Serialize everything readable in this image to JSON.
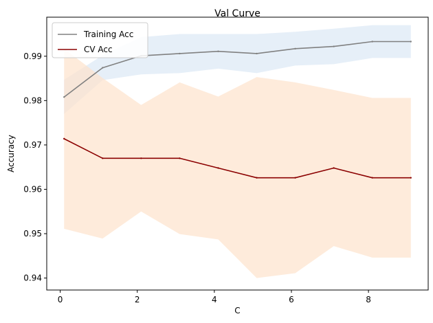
{
  "chart_data": {
    "type": "line",
    "title": "Val Curve",
    "xlabel": "C",
    "ylabel": "Accuracy",
    "x": [
      0.1,
      1.1,
      2.1,
      3.1,
      4.1,
      5.1,
      6.1,
      7.1,
      8.1,
      9.1
    ],
    "xlim": [
      -0.35,
      9.55
    ],
    "ylim": [
      0.9373,
      0.9988
    ],
    "xticks": [
      0,
      2,
      4,
      6,
      8
    ],
    "yticks": [
      0.94,
      0.95,
      0.96,
      0.97,
      0.98,
      0.99
    ],
    "xtick_labels": [
      "0",
      "2",
      "4",
      "6",
      "8"
    ],
    "ytick_labels": [
      "0.94",
      "0.95",
      "0.96",
      "0.97",
      "0.98",
      "0.99"
    ],
    "legend_position": "top-left",
    "grid": false,
    "series": [
      {
        "name": "Training Acc",
        "color": "#808080",
        "band_color": "#dce8f5",
        "values": [
          0.9808,
          0.9874,
          0.9901,
          0.9906,
          0.9911,
          0.9906,
          0.9917,
          0.9922,
          0.9933,
          0.9933
        ],
        "upper": [
          0.9847,
          0.9902,
          0.9943,
          0.995,
          0.995,
          0.995,
          0.9955,
          0.9962,
          0.997,
          0.997
        ],
        "lower": [
          0.977,
          0.9846,
          0.9859,
          0.9862,
          0.9872,
          0.9862,
          0.9879,
          0.9882,
          0.9896,
          0.9896
        ]
      },
      {
        "name": "CV Acc",
        "color": "#8b0000",
        "band_color": "#fde2cc",
        "values": [
          0.9714,
          0.967,
          0.967,
          0.967,
          0.9648,
          0.9626,
          0.9626,
          0.9648,
          0.9626,
          0.9626
        ],
        "upper": [
          0.9917,
          0.9851,
          0.979,
          0.9841,
          0.9809,
          0.9853,
          0.9841,
          0.9824,
          0.9806,
          0.9806
        ],
        "lower": [
          0.9511,
          0.9489,
          0.955,
          0.9499,
          0.9487,
          0.94,
          0.9411,
          0.9472,
          0.9446,
          0.9446
        ]
      }
    ]
  }
}
